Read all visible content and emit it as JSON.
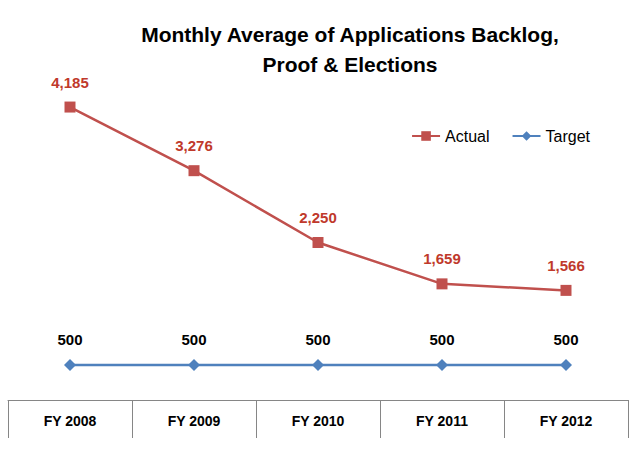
{
  "chart_data": {
    "type": "line",
    "title": "Monthly Average of Applications Backlog,\nProof & Elections",
    "categories": [
      "FY 2008",
      "FY 2009",
      "FY 2010",
      "FY 2011",
      "FY 2012"
    ],
    "series": [
      {
        "name": "Actual",
        "color": "#c0504d",
        "marker": "square",
        "values": [
          4185,
          3276,
          2250,
          1659,
          1566
        ],
        "value_labels": [
          "4,185",
          "3,276",
          "2,250",
          "1,659",
          "1,566"
        ]
      },
      {
        "name": "Target",
        "color": "#4f81bd",
        "marker": "diamond",
        "values": [
          500,
          500,
          500,
          500,
          500
        ]
      }
    ],
    "ylim": [
      0,
      5000
    ],
    "yticks": [
      0,
      1000,
      2000,
      3000,
      4000,
      5000
    ],
    "grid": false,
    "legend": "upper right",
    "data_labels": true,
    "tick_labels": "x"
  }
}
